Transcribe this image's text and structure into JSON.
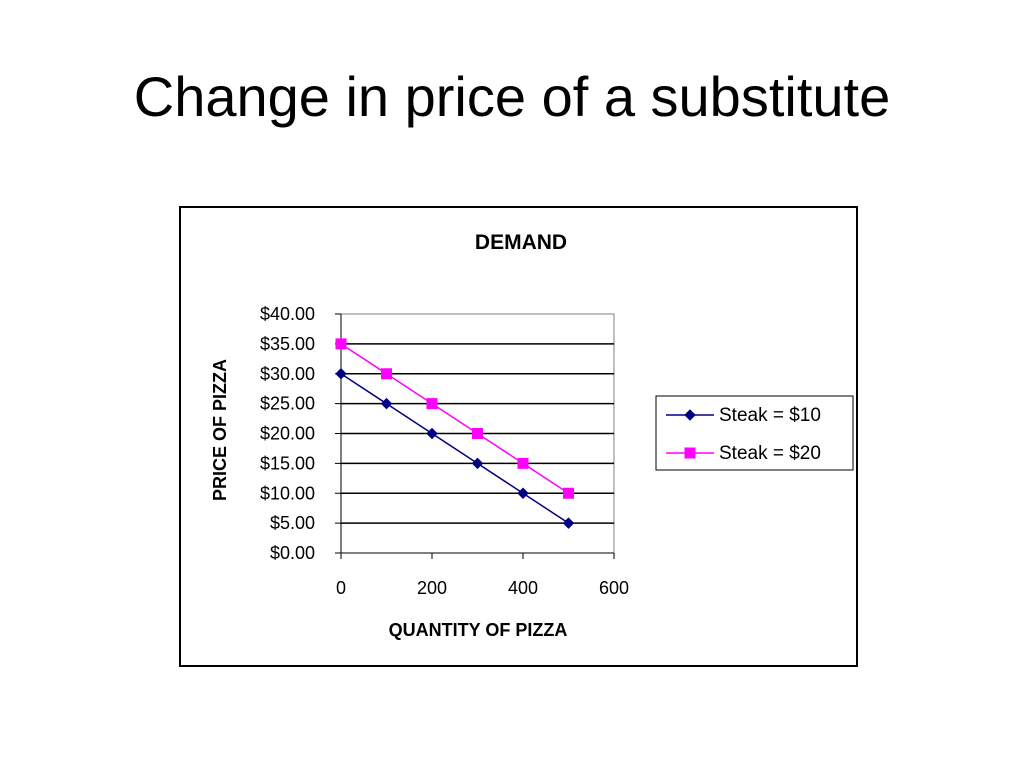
{
  "slide": {
    "title": "Change in price of a substitute"
  },
  "chart_data": {
    "type": "line",
    "title": "DEMAND",
    "xlabel": "QUANTITY OF PIZZA",
    "ylabel": "PRICE OF PIZZA",
    "xlim": [
      0,
      600
    ],
    "ylim": [
      0,
      40
    ],
    "x_ticks": [
      "0",
      "200",
      "400",
      "600"
    ],
    "x_tick_values": [
      0,
      200,
      400,
      600
    ],
    "y_ticks": [
      "$0.00",
      "$5.00",
      "$10.00",
      "$15.00",
      "$20.00",
      "$25.00",
      "$30.00",
      "$35.00",
      "$40.00"
    ],
    "y_tick_values": [
      0,
      5,
      10,
      15,
      20,
      25,
      30,
      35,
      40
    ],
    "grid": "horizontal",
    "legend_position": "right",
    "series": [
      {
        "name": "Steak = $10",
        "color": "#000080",
        "marker": "diamond",
        "x": [
          0,
          100,
          200,
          300,
          400,
          500
        ],
        "y": [
          30,
          25,
          20,
          15,
          10,
          5
        ]
      },
      {
        "name": "Steak = $20",
        "color": "#FF00FF",
        "marker": "square",
        "x": [
          0,
          100,
          200,
          300,
          400,
          500
        ],
        "y": [
          35,
          30,
          25,
          20,
          15,
          10
        ]
      }
    ]
  }
}
